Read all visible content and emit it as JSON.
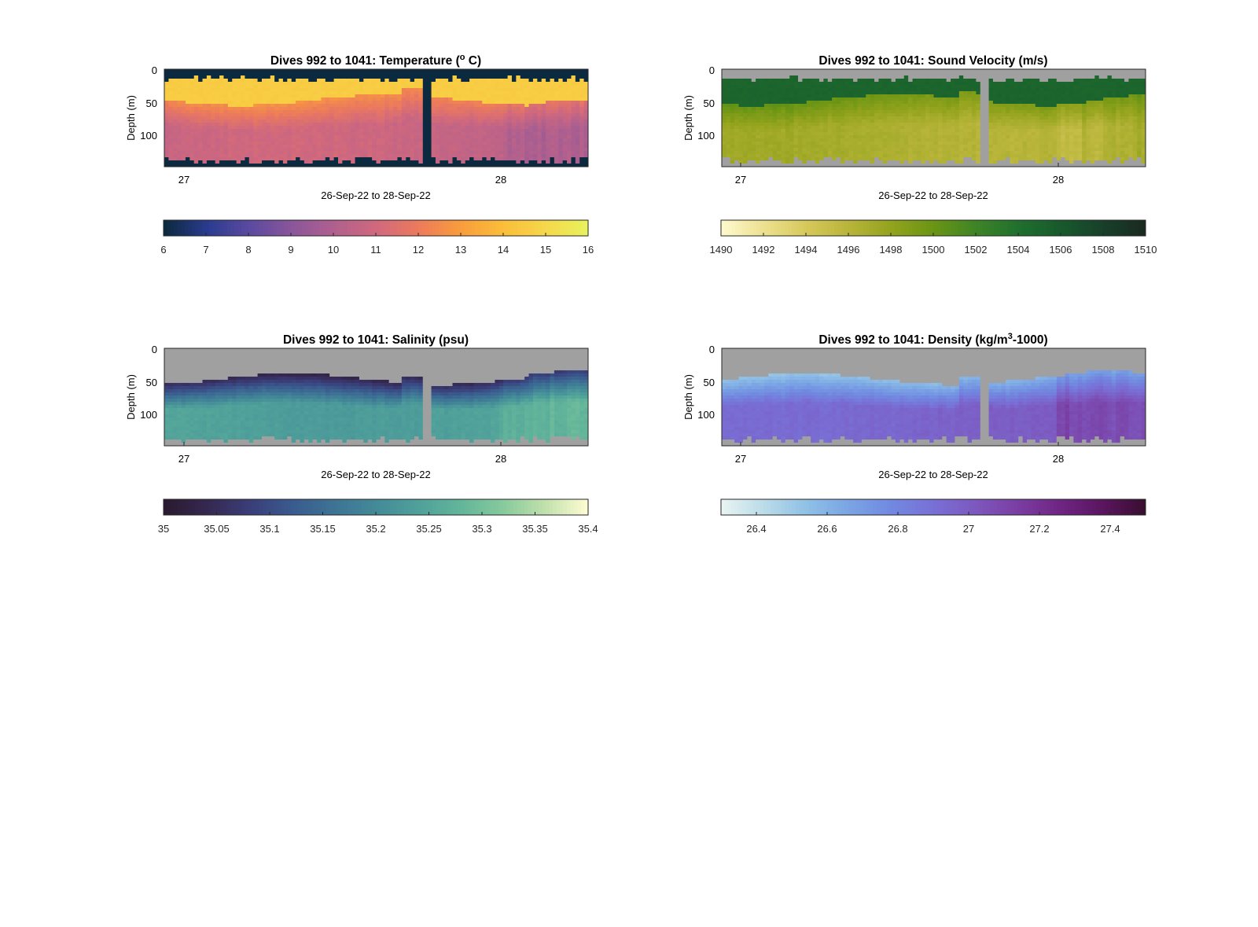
{
  "figure": {
    "background": "#ffffff",
    "missing_color": "#a0a0a0",
    "gap_color_temperature": "#0c2a3f",
    "ylabel": "Depth (m)",
    "xlabel": "26-Sep-22 to 28-Sep-22"
  },
  "chart_data": [
    {
      "id": "temperature",
      "type": "heatmap",
      "title_main": "Dives 992 to 1041: Temperature (",
      "title_sup": "o",
      "title_end": " C)",
      "xlabel": "26-Sep-22 to 28-Sep-22",
      "ylabel": "Depth (m)",
      "xticks": [
        "27",
        "28"
      ],
      "yticks": [
        "0",
        "50",
        "100"
      ],
      "ylim": [
        0,
        150
      ],
      "grid": false,
      "background": "#0c2a3f",
      "colormap": [
        "#0c2a3f",
        "#2a3b8f",
        "#5a4aa0",
        "#8a569a",
        "#b0608e",
        "#d0687e",
        "#ec7a5c",
        "#f99c3c",
        "#fbbd3a",
        "#f6d64a",
        "#e8f25c"
      ],
      "colorbar": {
        "ticks": [
          "6",
          "7",
          "8",
          "9",
          "10",
          "11",
          "12",
          "13",
          "14",
          "15",
          "16"
        ],
        "range": [
          6,
          16
        ]
      },
      "profile": {
        "surface_value": 14.6,
        "mixed_depth": 45,
        "transition_value": 12.3,
        "deep_value": 10.6
      }
    },
    {
      "id": "sound_velocity",
      "type": "heatmap",
      "title_main": "Dives 992 to 1041: Sound Velocity (m/s)",
      "title_sup": "",
      "title_end": "",
      "xlabel": "26-Sep-22 to 28-Sep-22",
      "ylabel": "Depth (m)",
      "xticks": [
        "27",
        "28"
      ],
      "yticks": [
        "0",
        "50",
        "100"
      ],
      "ylim": [
        0,
        150
      ],
      "grid": false,
      "background": "#a0a0a0",
      "colormap": [
        "#fdf9cc",
        "#ece08e",
        "#d6c85a",
        "#b8b53a",
        "#93a31d",
        "#6a9514",
        "#3f8426",
        "#20702e",
        "#185a2c",
        "#18402a",
        "#1a2a20"
      ],
      "colorbar": {
        "ticks": [
          "1490",
          "1492",
          "1494",
          "1496",
          "1498",
          "1500",
          "1502",
          "1504",
          "1506",
          "1508",
          "1510"
        ],
        "range": [
          1490,
          1510
        ]
      },
      "profile": {
        "surface_value": 1505.0,
        "mixed_depth": 45,
        "transition_value": 1499.5,
        "deep_value": 1496.5
      }
    },
    {
      "id": "salinity",
      "type": "heatmap",
      "title_main": "Dives 992 to 1041: Salinity (psu)",
      "title_sup": "",
      "title_end": "",
      "xlabel": "26-Sep-22 to 28-Sep-22",
      "ylabel": "Depth (m)",
      "xticks": [
        "27",
        "28"
      ],
      "yticks": [
        "0",
        "50",
        "100"
      ],
      "ylim": [
        0,
        150
      ],
      "grid": false,
      "background": "#a0a0a0",
      "colormap": [
        "#2a1a30",
        "#35284f",
        "#3a3d78",
        "#3a5a8e",
        "#3d7394",
        "#448a98",
        "#4fa09a",
        "#62b59a",
        "#86c99c",
        "#bfe0ab",
        "#fdfbd2"
      ],
      "colorbar": {
        "ticks": [
          "35",
          "35.05",
          "35.1",
          "35.15",
          "35.2",
          "35.25",
          "35.3",
          "35.35",
          "35.4"
        ],
        "range": [
          35.0,
          35.4
        ]
      },
      "profile": {
        "surface_value": null,
        "mixed_depth": 45,
        "transition_value": 35.04,
        "deep_value": 35.24
      }
    },
    {
      "id": "density",
      "type": "heatmap",
      "title_main": "Dives 992 to 1041: Density (kg/m",
      "title_sup": "3",
      "title_end": "-1000)",
      "xlabel": "26-Sep-22 to 28-Sep-22",
      "ylabel": "Depth (m)",
      "xticks": [
        "27",
        "28"
      ],
      "yticks": [
        "0",
        "50",
        "100"
      ],
      "ylim": [
        0,
        150
      ],
      "grid": false,
      "background": "#a0a0a0",
      "colormap": [
        "#e8f3f2",
        "#b9dbe8",
        "#8fc0e6",
        "#7aa4e4",
        "#7189e0",
        "#7870d6",
        "#7d58be",
        "#7a3ea3",
        "#6f2583",
        "#5a1660",
        "#3a0e30"
      ],
      "colorbar": {
        "ticks": [
          "26.4",
          "26.6",
          "26.8",
          "27",
          "27.2",
          "27.4"
        ],
        "range": [
          26.3,
          27.5
        ]
      },
      "profile": {
        "surface_value": null,
        "mixed_depth": 45,
        "transition_value": 26.55,
        "deep_value": 26.95
      }
    }
  ]
}
